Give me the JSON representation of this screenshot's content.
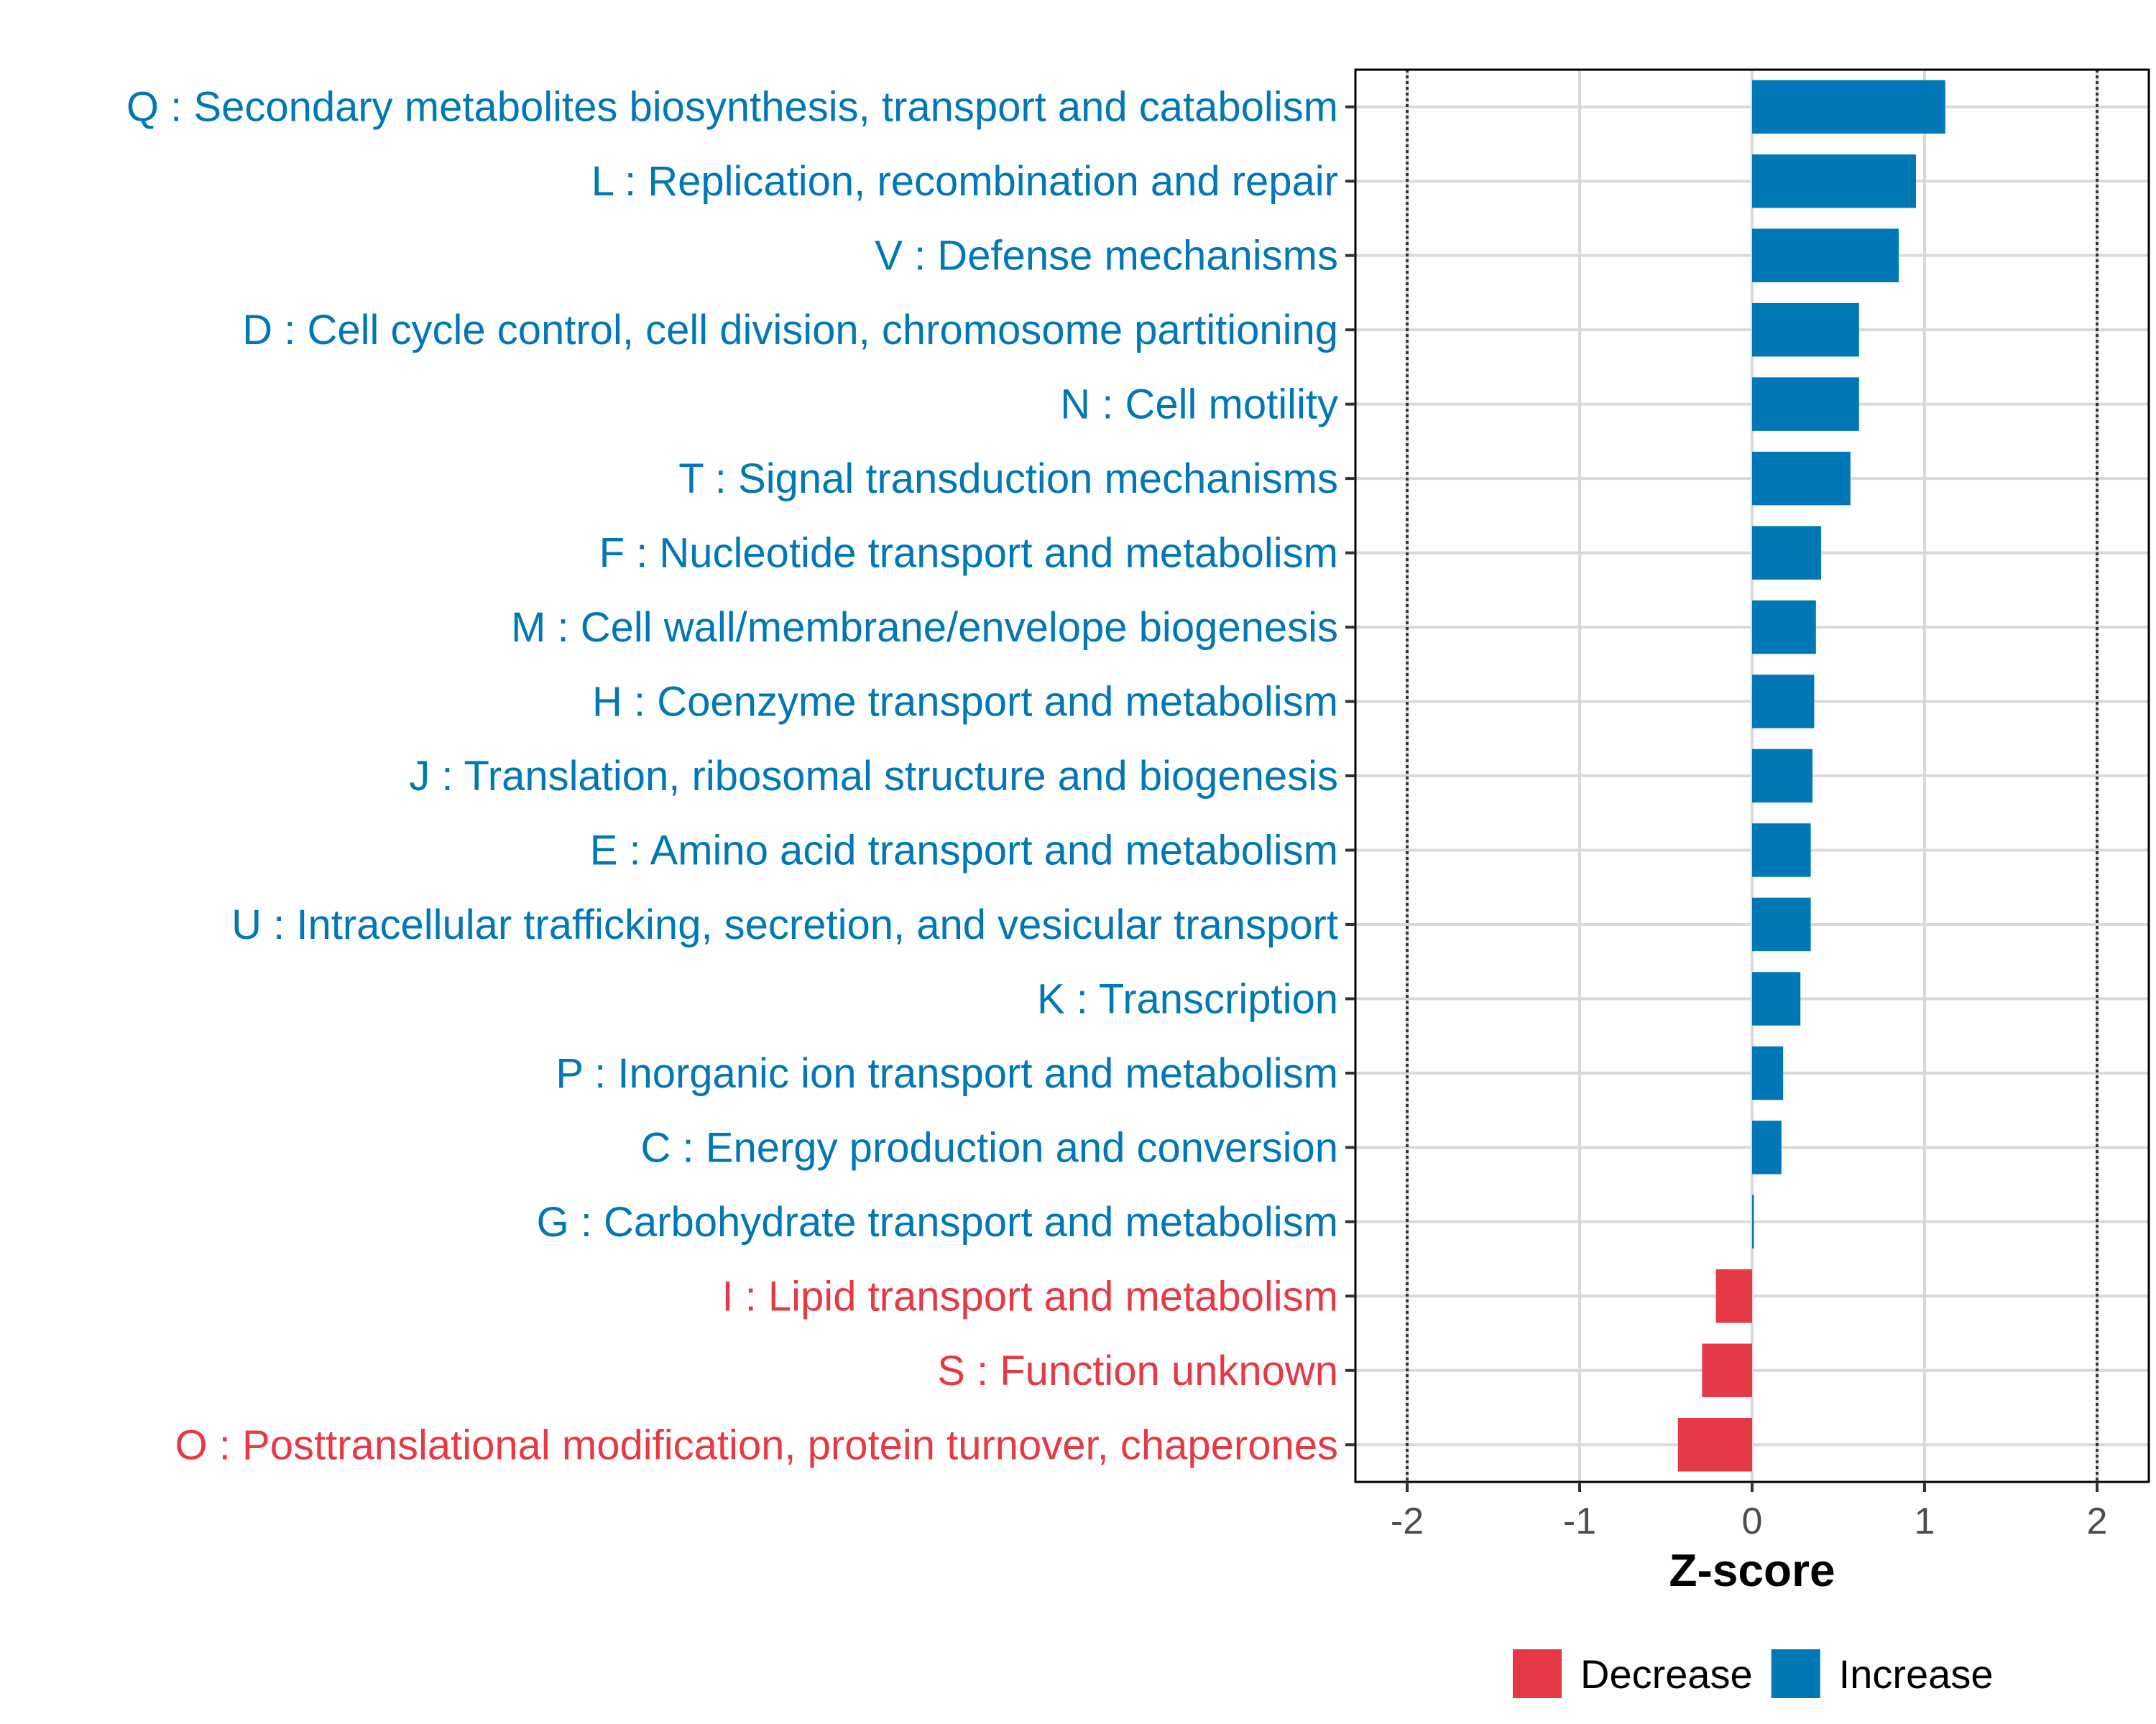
{
  "chart_data": {
    "type": "bar",
    "orientation": "horizontal",
    "xlabel": "Z-score",
    "ylabel": "",
    "xlim": [
      -2.3,
      2.3
    ],
    "xticks": [
      -2,
      -1,
      0,
      1,
      2
    ],
    "xtick_labels": [
      "-2",
      "-1",
      "0",
      "1",
      "2"
    ],
    "reference_lines": [
      -2,
      2
    ],
    "grid": true,
    "legend_position": "bottom",
    "categories": [
      "Q : Secondary metabolites biosynthesis, transport and catabolism",
      "L : Replication, recombination and repair",
      "V : Defense mechanisms",
      "D : Cell cycle control, cell division, chromosome partitioning",
      "N : Cell motility",
      "T : Signal transduction mechanisms",
      "F : Nucleotide transport and metabolism",
      "M : Cell wall/membrane/envelope biogenesis",
      "H : Coenzyme transport and metabolism",
      "J : Translation, ribosomal structure and biogenesis",
      "E : Amino acid transport and metabolism",
      "U : Intracellular trafficking, secretion, and vesicular transport",
      "K : Transcription",
      "P : Inorganic ion transport and metabolism",
      "C : Energy production and conversion",
      "G : Carbohydrate transport and metabolism",
      "I : Lipid transport and metabolism",
      "S : Function unknown",
      "O : Posttranslational modification, protein turnover, chaperones"
    ],
    "values": [
      1.12,
      0.95,
      0.85,
      0.62,
      0.62,
      0.57,
      0.4,
      0.37,
      0.36,
      0.35,
      0.34,
      0.34,
      0.28,
      0.18,
      0.17,
      0.01,
      -0.21,
      -0.29,
      -0.43
    ],
    "groups": [
      "Increase",
      "Increase",
      "Increase",
      "Increase",
      "Increase",
      "Increase",
      "Increase",
      "Increase",
      "Increase",
      "Increase",
      "Increase",
      "Increase",
      "Increase",
      "Increase",
      "Increase",
      "Increase",
      "Decrease",
      "Decrease",
      "Decrease"
    ],
    "legend": [
      {
        "label": "Decrease",
        "color": "#E63946"
      },
      {
        "label": "Increase",
        "color": "#0077B6"
      }
    ]
  }
}
